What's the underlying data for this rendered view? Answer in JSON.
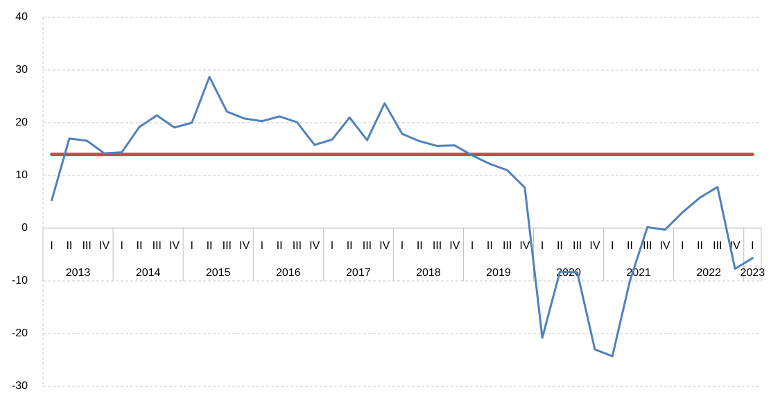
{
  "chart_data": {
    "type": "line",
    "categories": [
      "I",
      "II",
      "III",
      "IV",
      "I",
      "II",
      "III",
      "IV",
      "I",
      "II",
      "III",
      "IV",
      "I",
      "II",
      "III",
      "IV",
      "I",
      "II",
      "III",
      "IV",
      "I",
      "II",
      "III",
      "IV",
      "I",
      "II",
      "III",
      "IV",
      "I",
      "II",
      "III",
      "IV",
      "I",
      "II",
      "III",
      "IV",
      "I",
      "II",
      "III",
      "IV",
      "I"
    ],
    "groups": [
      "2013",
      "2014",
      "2015",
      "2016",
      "2017",
      "2018",
      "2019",
      "2020",
      "2021",
      "2022",
      "2023"
    ],
    "series": [
      {
        "color": "#4f81bd",
        "values": [
          5.3,
          17,
          16.6,
          14.2,
          14.4,
          19.2,
          21.4,
          19.1,
          20,
          28.7,
          22.1,
          20.8,
          20.3,
          21.2,
          20.1,
          15.8,
          16.8,
          21,
          16.7,
          23.7,
          17.9,
          16.5,
          15.6,
          15.7,
          13.8,
          12.2,
          11,
          7.7,
          -20.8,
          -8.3,
          -8.4,
          -23,
          -24.3,
          -10,
          0.2,
          -0.3,
          3,
          5.8,
          7.8,
          -7.7,
          -5.7
        ]
      },
      {
        "color": "#c0504d",
        "values": [
          14,
          14,
          14,
          14,
          14,
          14,
          14,
          14,
          14,
          14,
          14,
          14,
          14,
          14,
          14,
          14,
          14,
          14,
          14,
          14,
          14,
          14,
          14,
          14,
          14,
          14,
          14,
          14,
          14,
          14,
          14,
          14,
          14,
          14,
          14,
          14,
          14,
          14,
          14,
          14,
          14
        ]
      }
    ],
    "ylim": [
      -30,
      40
    ],
    "yticks": [
      -30,
      -20,
      -10,
      0,
      10,
      20,
      30,
      40
    ],
    "grid": true
  }
}
